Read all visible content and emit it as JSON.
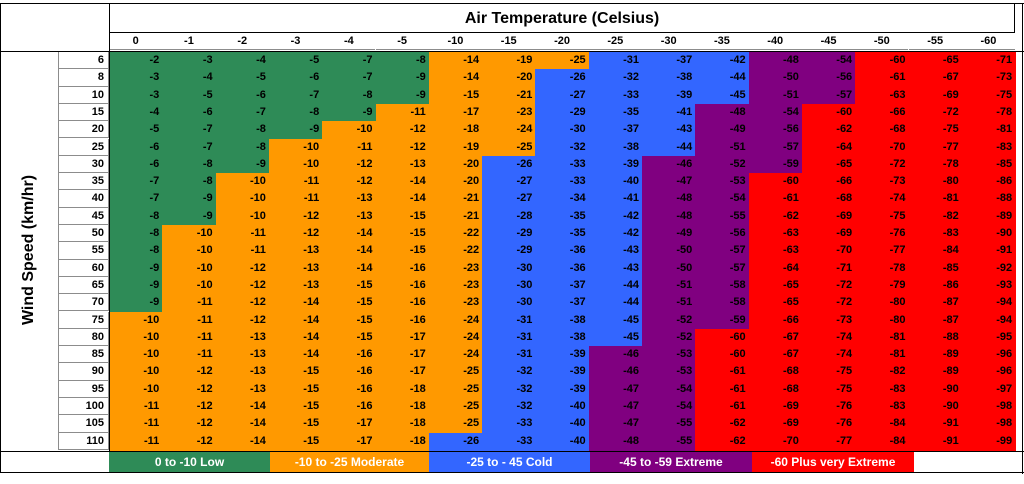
{
  "chart_data": {
    "type": "table",
    "title": "Air Temperature (Celsius)",
    "ylabel": "Wind Speed (km/hr)",
    "temperatures": [
      "0",
      "-1",
      "-2",
      "-3",
      "-4",
      "-5",
      "-10",
      "-15",
      "-20",
      "-25",
      "-30",
      "-35",
      "-40",
      "-45",
      "-50",
      "-55",
      "-60"
    ],
    "wind_speeds": [
      "6",
      "8",
      "10",
      "15",
      "20",
      "25",
      "30",
      "35",
      "40",
      "45",
      "50",
      "55",
      "60",
      "65",
      "70",
      "75",
      "80",
      "85",
      "90",
      "95",
      "100",
      "105",
      "110"
    ],
    "rows": [
      [
        -2,
        -3,
        -4,
        -5,
        -7,
        -8,
        -14,
        -19,
        -25,
        -31,
        -37,
        -42,
        -48,
        -54,
        -60,
        -65,
        -71
      ],
      [
        -3,
        -4,
        -5,
        -6,
        -7,
        -9,
        -14,
        -20,
        -26,
        -32,
        -38,
        -44,
        -50,
        -56,
        -61,
        -67,
        -73
      ],
      [
        -3,
        -5,
        -6,
        -7,
        -8,
        -9,
        -15,
        -21,
        -27,
        -33,
        -39,
        -45,
        -51,
        -57,
        -63,
        -69,
        -75
      ],
      [
        -4,
        -6,
        -7,
        -8,
        -9,
        -11,
        -17,
        -23,
        -29,
        -35,
        -41,
        -48,
        -54,
        -60,
        -66,
        -72,
        -78
      ],
      [
        -5,
        -7,
        -8,
        -9,
        -10,
        -12,
        -18,
        -24,
        -30,
        -37,
        -43,
        -49,
        -56,
        -62,
        -68,
        -75,
        -81
      ],
      [
        -6,
        -7,
        -8,
        -10,
        -11,
        -12,
        -19,
        -25,
        -32,
        -38,
        -44,
        -51,
        -57,
        -64,
        -70,
        -77,
        -83
      ],
      [
        -6,
        -8,
        -9,
        -10,
        -12,
        -13,
        -20,
        -26,
        -33,
        -39,
        -46,
        -52,
        -59,
        -65,
        -72,
        -78,
        -85
      ],
      [
        -7,
        -8,
        -10,
        -11,
        -12,
        -14,
        -20,
        -27,
        -33,
        -40,
        -47,
        -53,
        -60,
        -66,
        -73,
        -80,
        -86
      ],
      [
        -7,
        -9,
        -10,
        -11,
        -13,
        -14,
        -21,
        -27,
        -34,
        -41,
        -48,
        -54,
        -61,
        -68,
        -74,
        -81,
        -88
      ],
      [
        -8,
        -9,
        -10,
        -12,
        -13,
        -15,
        -21,
        -28,
        -35,
        -42,
        -48,
        -55,
        -62,
        -69,
        -75,
        -82,
        -89
      ],
      [
        -8,
        -10,
        -11,
        -12,
        -14,
        -15,
        -22,
        -29,
        -35,
        -42,
        -49,
        -56,
        -63,
        -69,
        -76,
        -83,
        -90
      ],
      [
        -8,
        -10,
        -11,
        -13,
        -14,
        -15,
        -22,
        -29,
        -36,
        -43,
        -50,
        -57,
        -63,
        -70,
        -77,
        -84,
        -91
      ],
      [
        -9,
        -10,
        -12,
        -13,
        -14,
        -16,
        -23,
        -30,
        -36,
        -43,
        -50,
        -57,
        -64,
        -71,
        -78,
        -85,
        -92
      ],
      [
        -9,
        -10,
        -12,
        -13,
        -15,
        -16,
        -23,
        -30,
        -37,
        -44,
        -51,
        -58,
        -65,
        -72,
        -79,
        -86,
        -93
      ],
      [
        -9,
        -11,
        -12,
        -14,
        -15,
        -16,
        -23,
        -30,
        -37,
        -44,
        -51,
        -58,
        -65,
        -72,
        -80,
        -87,
        -94
      ],
      [
        -10,
        -11,
        -12,
        -14,
        -15,
        -16,
        -24,
        -31,
        -38,
        -45,
        -52,
        -59,
        -66,
        -73,
        -80,
        -87,
        -94
      ],
      [
        -10,
        -11,
        -13,
        -14,
        -15,
        -17,
        -24,
        -31,
        -38,
        -45,
        -52,
        -60,
        -67,
        -74,
        -81,
        -88,
        -95
      ],
      [
        -10,
        -11,
        -13,
        -14,
        -16,
        -17,
        -24,
        -31,
        -39,
        -46,
        -53,
        -60,
        -67,
        -74,
        -81,
        -89,
        -96
      ],
      [
        -10,
        -12,
        -13,
        -15,
        -16,
        -17,
        -25,
        -32,
        -39,
        -46,
        -53,
        -61,
        -68,
        -75,
        -82,
        -89,
        -96
      ],
      [
        -10,
        -12,
        -13,
        -15,
        -16,
        -18,
        -25,
        -32,
        -39,
        -47,
        -54,
        -61,
        -68,
        -75,
        -83,
        -90,
        -97
      ],
      [
        -11,
        -12,
        -14,
        -15,
        -16,
        -18,
        -25,
        -32,
        -40,
        -47,
        -54,
        -61,
        -69,
        -76,
        -83,
        -90,
        -98
      ],
      [
        -11,
        -12,
        -14,
        -15,
        -17,
        -18,
        -25,
        -33,
        -40,
        -47,
        -55,
        -62,
        -69,
        -76,
        -84,
        -91,
        -98
      ],
      [
        -11,
        -12,
        -14,
        -15,
        -17,
        -18,
        -26,
        -33,
        -40,
        -48,
        -55,
        -62,
        -70,
        -77,
        -84,
        -91,
        -99
      ]
    ],
    "legend": [
      {
        "label": "0 to -10 Low",
        "color": "#2e8b57"
      },
      {
        "label": "-10 to -25 Moderate",
        "color": "#ff9900"
      },
      {
        "label": "-25 to - 45 Cold",
        "color": "#3366ff"
      },
      {
        "label": "-45 to -59 Extreme",
        "color": "#800080"
      },
      {
        "label": "-60 Plus  very Extreme",
        "color": "#ff0000"
      }
    ]
  }
}
